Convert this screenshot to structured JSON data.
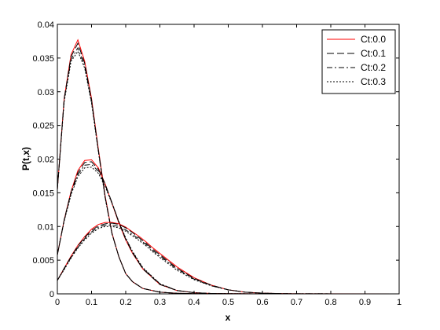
{
  "chart_data": {
    "type": "line",
    "xlabel": "x",
    "ylabel": "P(t,x)",
    "xlim": [
      0,
      1
    ],
    "ylim": [
      0,
      0.04
    ],
    "xticks": [
      "0",
      "0.1",
      "0.2",
      "0.3",
      "0.4",
      "0.5",
      "0.6",
      "0.7",
      "0.8",
      "0.9",
      "1"
    ],
    "yticks": [
      "0",
      "0.005",
      "0.01",
      "0.015",
      "0.02",
      "0.025",
      "0.03",
      "0.035",
      "0.04"
    ],
    "grid": false,
    "legend_position": "top-right",
    "series_styles": [
      {
        "label": "Ct:0.0",
        "color": "#ff0000",
        "dash": ""
      },
      {
        "label": "Ct:0.1",
        "color": "#000000",
        "dash": "9,4"
      },
      {
        "label": "Ct:0.2",
        "color": "#000000",
        "dash": "7,3,2,3"
      },
      {
        "label": "Ct:0.3",
        "color": "#000000",
        "dash": "2,2"
      }
    ],
    "series": [
      {
        "name": "Ct:0.0",
        "group": "A",
        "x": [
          0,
          0.02,
          0.04,
          0.06,
          0.08,
          0.1,
          0.12,
          0.14,
          0.16,
          0.18,
          0.2,
          0.22,
          0.25,
          0.3,
          0.35,
          0.4,
          0.5,
          0.6,
          1.0
        ],
        "y": [
          0.0155,
          0.029,
          0.0355,
          0.0377,
          0.0345,
          0.029,
          0.0215,
          0.0145,
          0.009,
          0.0055,
          0.003,
          0.0018,
          0.0008,
          0.00025,
          8e-05,
          3e-05,
          1e-05,
          0,
          0
        ]
      },
      {
        "name": "Ct:0.1",
        "group": "A",
        "x": [
          0,
          0.02,
          0.04,
          0.06,
          0.08,
          0.1,
          0.12,
          0.14,
          0.16,
          0.18,
          0.2,
          0.22,
          0.25,
          0.3,
          0.35,
          0.4,
          0.5,
          0.6,
          1.0
        ],
        "y": [
          0.0155,
          0.029,
          0.0352,
          0.0372,
          0.0342,
          0.0288,
          0.0213,
          0.0143,
          0.0089,
          0.0055,
          0.003,
          0.0018,
          0.0008,
          0.00025,
          8e-05,
          3e-05,
          1e-05,
          0,
          0
        ]
      },
      {
        "name": "Ct:0.2",
        "group": "A",
        "x": [
          0,
          0.02,
          0.04,
          0.06,
          0.08,
          0.1,
          0.12,
          0.14,
          0.16,
          0.18,
          0.2,
          0.22,
          0.25,
          0.3,
          0.35,
          0.4,
          0.5,
          0.6,
          1.0
        ],
        "y": [
          0.0155,
          0.0288,
          0.0348,
          0.0365,
          0.0338,
          0.0285,
          0.0212,
          0.0143,
          0.0089,
          0.0055,
          0.003,
          0.0018,
          0.0008,
          0.00025,
          8e-05,
          3e-05,
          1e-05,
          0,
          0
        ]
      },
      {
        "name": "Ct:0.3",
        "group": "A",
        "x": [
          0,
          0.02,
          0.04,
          0.06,
          0.08,
          0.1,
          0.12,
          0.14,
          0.16,
          0.18,
          0.2,
          0.22,
          0.25,
          0.3,
          0.35,
          0.4,
          0.5,
          0.6,
          1.0
        ],
        "y": [
          0.0155,
          0.0285,
          0.0345,
          0.036,
          0.0335,
          0.0283,
          0.0211,
          0.0142,
          0.0089,
          0.0055,
          0.003,
          0.0018,
          0.0008,
          0.00025,
          8e-05,
          3e-05,
          1e-05,
          0,
          0
        ]
      },
      {
        "name": "Ct:0.0",
        "group": "B",
        "x": [
          0,
          0.02,
          0.04,
          0.06,
          0.08,
          0.1,
          0.12,
          0.14,
          0.16,
          0.18,
          0.2,
          0.22,
          0.25,
          0.3,
          0.35,
          0.4,
          0.45,
          0.5,
          0.55,
          0.6,
          1.0
        ],
        "y": [
          0.0058,
          0.011,
          0.0152,
          0.0183,
          0.0198,
          0.0199,
          0.0187,
          0.0163,
          0.0134,
          0.0105,
          0.008,
          0.006,
          0.0037,
          0.0014,
          0.0005,
          0.00017,
          6e-05,
          2e-05,
          1e-05,
          0,
          0
        ]
      },
      {
        "name": "Ct:0.1",
        "group": "B",
        "x": [
          0,
          0.02,
          0.04,
          0.06,
          0.08,
          0.1,
          0.12,
          0.14,
          0.16,
          0.18,
          0.2,
          0.22,
          0.25,
          0.3,
          0.35,
          0.4,
          0.45,
          0.5,
          0.55,
          0.6,
          1.0
        ],
        "y": [
          0.0058,
          0.011,
          0.0151,
          0.018,
          0.0195,
          0.0196,
          0.0185,
          0.0163,
          0.0135,
          0.0106,
          0.0081,
          0.0061,
          0.0037,
          0.0014,
          0.0005,
          0.00017,
          6e-05,
          2e-05,
          1e-05,
          0,
          0
        ]
      },
      {
        "name": "Ct:0.2",
        "group": "B",
        "x": [
          0,
          0.02,
          0.04,
          0.06,
          0.08,
          0.1,
          0.12,
          0.14,
          0.16,
          0.18,
          0.2,
          0.22,
          0.25,
          0.3,
          0.35,
          0.4,
          0.45,
          0.5,
          0.55,
          0.6,
          1.0
        ],
        "y": [
          0.0058,
          0.0109,
          0.0149,
          0.0177,
          0.0191,
          0.0192,
          0.0182,
          0.0161,
          0.0135,
          0.0107,
          0.0082,
          0.0062,
          0.0038,
          0.0015,
          0.0005,
          0.00017,
          6e-05,
          2e-05,
          1e-05,
          0,
          0
        ]
      },
      {
        "name": "Ct:0.3",
        "group": "B",
        "x": [
          0,
          0.02,
          0.04,
          0.06,
          0.08,
          0.1,
          0.12,
          0.14,
          0.16,
          0.18,
          0.2,
          0.22,
          0.25,
          0.3,
          0.35,
          0.4,
          0.45,
          0.5,
          0.55,
          0.6,
          1.0
        ],
        "y": [
          0.0058,
          0.0108,
          0.0147,
          0.0174,
          0.0187,
          0.0188,
          0.0179,
          0.0159,
          0.0134,
          0.0107,
          0.0083,
          0.0063,
          0.0039,
          0.0015,
          0.0005,
          0.00017,
          6e-05,
          2e-05,
          1e-05,
          0,
          0
        ]
      },
      {
        "name": "Ct:0.0",
        "group": "C",
        "x": [
          0,
          0.02,
          0.04,
          0.06,
          0.08,
          0.1,
          0.12,
          0.14,
          0.16,
          0.18,
          0.2,
          0.22,
          0.24,
          0.26,
          0.28,
          0.3,
          0.35,
          0.4,
          0.45,
          0.5,
          0.55,
          0.6,
          0.65,
          0.7,
          1.0
        ],
        "y": [
          0.002,
          0.0038,
          0.0056,
          0.0072,
          0.0085,
          0.0096,
          0.0103,
          0.0106,
          0.0106,
          0.0104,
          0.0099,
          0.0092,
          0.0085,
          0.0077,
          0.0068,
          0.006,
          0.004,
          0.0024,
          0.0013,
          0.0006,
          0.00025,
          0.0001,
          4e-05,
          1e-05,
          0
        ]
      },
      {
        "name": "Ct:0.1",
        "group": "C",
        "x": [
          0,
          0.02,
          0.04,
          0.06,
          0.08,
          0.1,
          0.12,
          0.14,
          0.16,
          0.18,
          0.2,
          0.22,
          0.24,
          0.26,
          0.28,
          0.3,
          0.35,
          0.4,
          0.45,
          0.5,
          0.55,
          0.6,
          0.65,
          0.7,
          1.0
        ],
        "y": [
          0.002,
          0.0038,
          0.0055,
          0.0071,
          0.0084,
          0.0094,
          0.0101,
          0.0104,
          0.0105,
          0.0103,
          0.0098,
          0.0091,
          0.0083,
          0.0075,
          0.0066,
          0.0058,
          0.0038,
          0.0023,
          0.0013,
          0.0006,
          0.00025,
          0.0001,
          4e-05,
          1e-05,
          0
        ]
      },
      {
        "name": "Ct:0.2",
        "group": "C",
        "x": [
          0,
          0.02,
          0.04,
          0.06,
          0.08,
          0.1,
          0.12,
          0.14,
          0.16,
          0.18,
          0.2,
          0.22,
          0.24,
          0.26,
          0.28,
          0.3,
          0.35,
          0.4,
          0.45,
          0.5,
          0.55,
          0.6,
          0.65,
          0.7,
          1.0
        ],
        "y": [
          0.002,
          0.0037,
          0.0054,
          0.0069,
          0.0082,
          0.0092,
          0.0099,
          0.0102,
          0.0102,
          0.01,
          0.0095,
          0.0088,
          0.0081,
          0.0073,
          0.0064,
          0.0056,
          0.0037,
          0.0022,
          0.0012,
          0.0006,
          0.00025,
          0.0001,
          4e-05,
          1e-05,
          0
        ]
      },
      {
        "name": "Ct:0.3",
        "group": "C",
        "x": [
          0,
          0.02,
          0.04,
          0.06,
          0.08,
          0.1,
          0.12,
          0.14,
          0.16,
          0.18,
          0.2,
          0.22,
          0.24,
          0.26,
          0.28,
          0.3,
          0.35,
          0.4,
          0.45,
          0.5,
          0.55,
          0.6,
          0.65,
          0.7,
          1.0
        ],
        "y": [
          0.002,
          0.0036,
          0.0053,
          0.0068,
          0.008,
          0.009,
          0.0097,
          0.01,
          0.01,
          0.0098,
          0.0093,
          0.0086,
          0.0079,
          0.0071,
          0.0062,
          0.0054,
          0.0035,
          0.0021,
          0.0012,
          0.0006,
          0.00025,
          0.0001,
          4e-05,
          1e-05,
          0
        ]
      }
    ]
  }
}
